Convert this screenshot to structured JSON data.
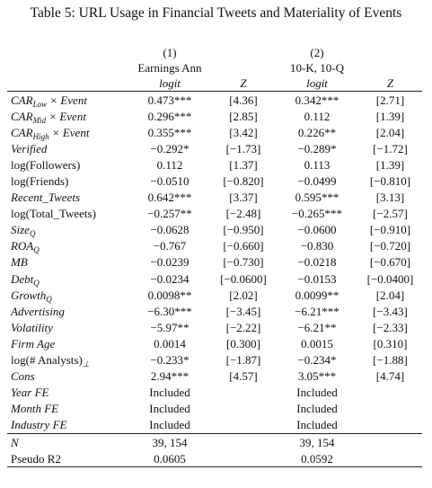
{
  "title": "Table 5: URL Usage in Financial Tweets and Materiality of Events",
  "table": {
    "header": {
      "numbers": [
        "(1)",
        "(2)"
      ],
      "samples": [
        "Earnings Ann",
        "10-K, 10-Q"
      ],
      "columns": [
        "logit",
        "Z",
        "logit",
        "Z"
      ]
    },
    "rows": [
      {
        "label": {
          "text": "CAR",
          "sub": "Low",
          "suffix": "× Event"
        },
        "cells": [
          "0.473***",
          "[4.36]",
          "0.342***",
          "[2.71]"
        ]
      },
      {
        "label": {
          "text": "CAR",
          "sub": "Mid",
          "suffix": "× Event"
        },
        "cells": [
          "0.296***",
          "[2.85]",
          "0.112",
          "[1.39]"
        ]
      },
      {
        "label": {
          "text": "CAR",
          "sub": "High",
          "suffix": "× Event"
        },
        "cells": [
          "0.355***",
          "[3.42]",
          "0.226**",
          "[2.04]"
        ]
      },
      {
        "label": "Verified",
        "cells": [
          "−0.292*",
          "[−1.73]",
          "−0.289*",
          "[−1.72]"
        ]
      },
      {
        "label": "log(Followers)",
        "cells": [
          "0.112",
          "[1.37]",
          "0.113",
          "[1.39]"
        ]
      },
      {
        "label": "log(Friends)",
        "cells": [
          "−0.0510",
          "[−0.820]",
          "−0.0499",
          "[−0.810]"
        ]
      },
      {
        "label": "Recent_Tweets",
        "cells": [
          "0.642***",
          "[3.37]",
          "0.595***",
          "[3.13]"
        ]
      },
      {
        "label": "log(Total_Tweets)",
        "cells": [
          "−0.257**",
          "[−2.48]",
          "−0.265***",
          "[−2.57]"
        ]
      },
      {
        "label": {
          "text": "Size",
          "sub": "Q"
        },
        "cells": [
          "−0.0628",
          "[−0.950]",
          "−0.0600",
          "[−0.910]"
        ]
      },
      {
        "label": {
          "text": "ROA",
          "sub": "Q"
        },
        "cells": [
          "−0.767",
          "[−0.660]",
          "−0.830",
          "[−0.720]"
        ]
      },
      {
        "label": "MB",
        "cells": [
          "−0.0239",
          "[−0.730]",
          "−0.0218",
          "[−0.670]"
        ]
      },
      {
        "label": {
          "text": "Debt",
          "sub": "Q"
        },
        "cells": [
          "−0.0234",
          "[−0.0600]",
          "−0.0153",
          "[−0.0400]"
        ]
      },
      {
        "label": {
          "text": "Growth",
          "sub": "Q"
        },
        "cells": [
          "0.0098**",
          "[2.02]",
          "0.0099**",
          "[2.04]"
        ]
      },
      {
        "label": "Advertising",
        "cells": [
          "−6.30***",
          "[−3.45]",
          "−6.21***",
          "[−3.43]"
        ]
      },
      {
        "label": "Volatility",
        "cells": [
          "−5.97**",
          "[−2.22]",
          "−6.21**",
          "[−2.33]"
        ]
      },
      {
        "label": "Firm Age",
        "cells": [
          "0.0014",
          "[0.300]",
          "0.0015",
          "[0.310]"
        ]
      },
      {
        "label": {
          "text": "log(# Analysts)",
          "sub": "⊥"
        },
        "cells": [
          "−0.233*",
          "[−1.87]",
          "−0.234*",
          "[−1.88]"
        ]
      },
      {
        "label": "Cons",
        "cells": [
          "2.94***",
          "[4.57]",
          "3.05***",
          "[4.74]"
        ]
      },
      {
        "label": "Year FE",
        "cells": [
          "Included",
          null,
          "Included",
          null
        ]
      },
      {
        "label": "Month FE",
        "cells": [
          "Included",
          null,
          "Included",
          null
        ]
      },
      {
        "label": "Industry FE",
        "cells": [
          "Included",
          null,
          "Included",
          null
        ]
      }
    ],
    "stats": [
      {
        "label": "N",
        "cells": [
          "39, 154",
          null,
          "39, 154",
          null
        ]
      },
      {
        "label": "Pseudo R2",
        "cells": [
          "0.0605",
          null,
          "0.0592",
          null
        ]
      }
    ]
  }
}
